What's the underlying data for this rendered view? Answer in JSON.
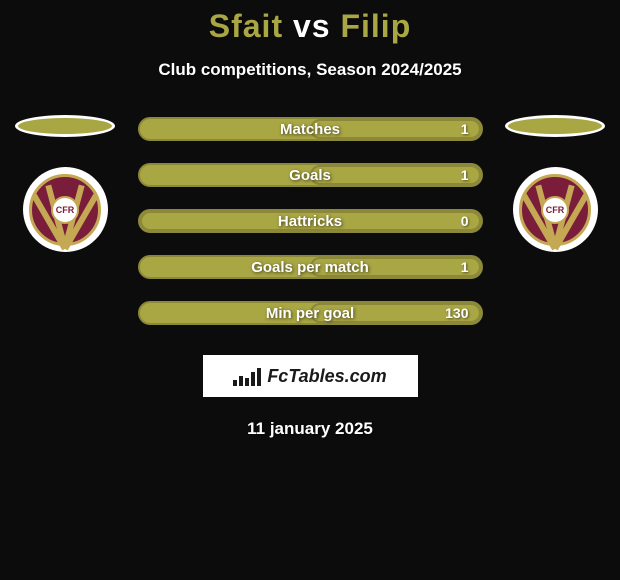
{
  "background_color": "#0c0c0c",
  "title": {
    "part1": "Sfait",
    "vs": "vs",
    "part2": "Filip",
    "part1_color": "#a9a644",
    "vs_color": "#ffffff",
    "part2_color": "#a9a644"
  },
  "subtitle": "Club competitions, Season 2024/2025",
  "colors": {
    "player1": "#a9a644",
    "player2": "#a9a644",
    "bar_border": "#8b8939",
    "badge_primary": "#7a1d3a",
    "badge_accent": "#c4a854"
  },
  "stats": [
    {
      "label": "Matches",
      "value_left": "",
      "value_right": "1",
      "fill_percent": 50,
      "fill_side": "right"
    },
    {
      "label": "Goals",
      "value_left": "",
      "value_right": "1",
      "fill_percent": 50,
      "fill_side": "right"
    },
    {
      "label": "Hattricks",
      "value_left": "",
      "value_right": "0",
      "fill_percent": 100,
      "fill_side": "full"
    },
    {
      "label": "Goals per match",
      "value_left": "",
      "value_right": "1",
      "fill_percent": 50,
      "fill_side": "right"
    },
    {
      "label": "Min per goal",
      "value_left": "",
      "value_right": "130",
      "fill_percent": 50,
      "fill_side": "right"
    }
  ],
  "badge_text": "CFR",
  "footer_brand": "FcTables.com",
  "date": "11 january 2025"
}
